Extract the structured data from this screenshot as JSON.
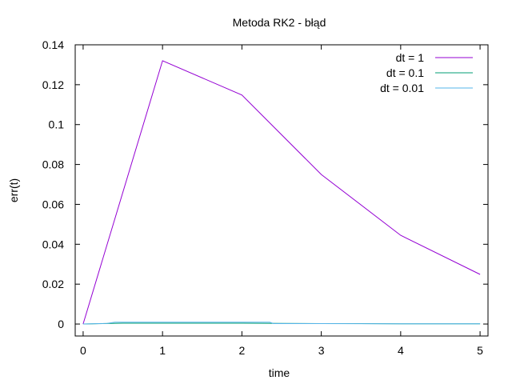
{
  "chart_data": {
    "type": "line",
    "title": "Metoda RK2 - błąd",
    "xlabel": "time",
    "ylabel": "err(t)",
    "xlim": [
      -0.1,
      5.1
    ],
    "ylim": [
      -0.006,
      0.14
    ],
    "xticks": [
      0,
      1,
      2,
      3,
      4,
      5
    ],
    "xtick_labels": [
      "0",
      "1",
      "2",
      "3",
      "4",
      "5"
    ],
    "yticks": [
      0,
      0.02,
      0.04,
      0.06,
      0.08,
      0.1,
      0.12,
      0.14
    ],
    "ytick_labels": [
      "0",
      "0.02",
      "0.04",
      "0.06",
      "0.08",
      "0.1",
      "0.12",
      "0.14"
    ],
    "grid": false,
    "legend_position": "top-right",
    "series": [
      {
        "name": "dt = 1",
        "color": "#9400d3",
        "x": [
          0,
          1,
          2,
          3,
          4,
          5
        ],
        "y": [
          0,
          0.132,
          0.1148,
          0.075,
          0.0445,
          0.0249
        ]
      },
      {
        "name": "dt = 0.1",
        "color": "#009e73",
        "x": [
          0,
          0.5,
          1,
          1.5,
          2,
          2.5,
          3,
          3.5,
          4,
          4.5,
          5
        ],
        "y": [
          0,
          0.0004,
          0.0004,
          0.0004,
          0.0004,
          0.0003,
          0.0002,
          0.0002,
          0.0001,
          0.0001,
          0.0001
        ]
      },
      {
        "name": "dt = 0.01",
        "color": "#56b4e9",
        "x": [
          0,
          0.3,
          0.4,
          1,
          2,
          2.35,
          2.4,
          3,
          4,
          5
        ],
        "y": [
          0,
          0.0003,
          0.0009,
          0.0009,
          0.0009,
          0.0009,
          0.0002,
          0.0002,
          0.0001,
          0.0001
        ]
      }
    ]
  }
}
